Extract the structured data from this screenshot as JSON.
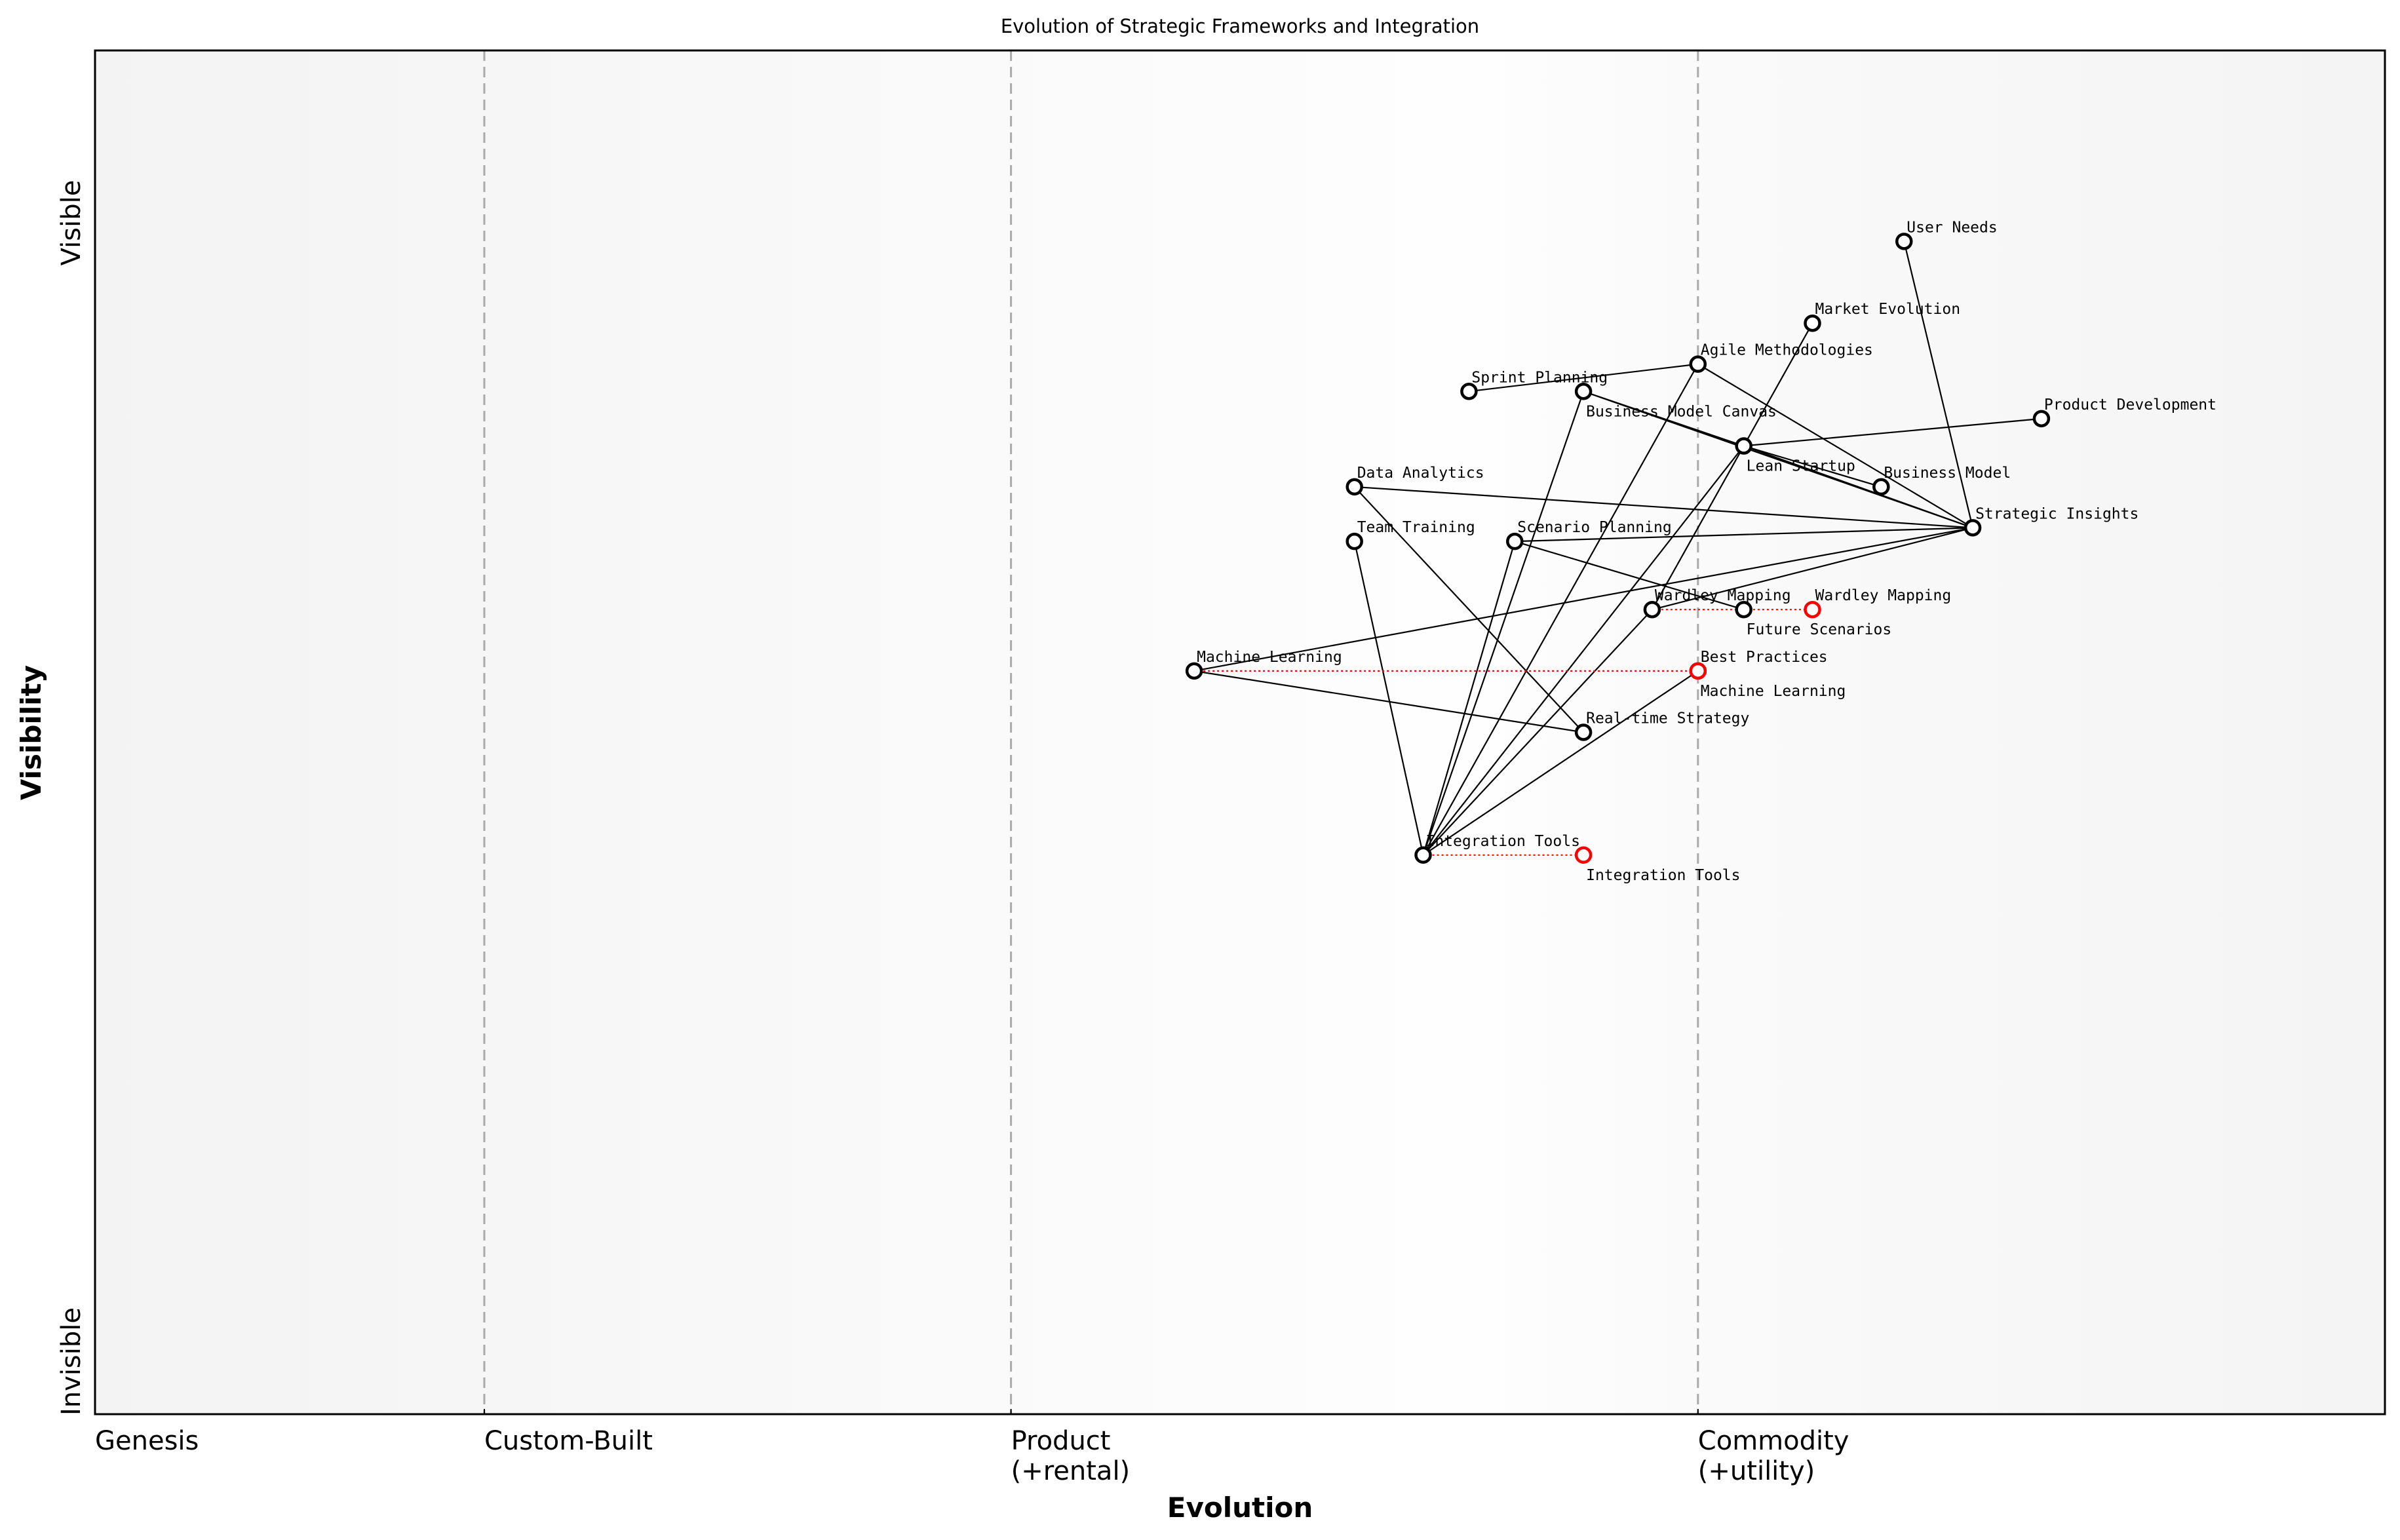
{
  "title": "Evolution of Strategic Frameworks and Integration",
  "xaxis": {
    "label": "Evolution",
    "stages": [
      {
        "value": 0.0,
        "lines": [
          "Genesis"
        ]
      },
      {
        "value": 0.17,
        "lines": [
          "Custom-Built"
        ]
      },
      {
        "value": 0.4,
        "lines": [
          "Product",
          "(+rental)"
        ]
      },
      {
        "value": 0.7,
        "lines": [
          "Commodity",
          "(+utility)"
        ]
      }
    ]
  },
  "yaxis": {
    "label": "Visibility",
    "top_label": "Visible",
    "bottom_label": "Invisible"
  },
  "colors": {
    "node": "#000000",
    "evolved": "#ff0000",
    "divider": "#aaaaaa"
  },
  "components": [
    {
      "name": "User Needs",
      "evolution": 0.79,
      "visibility": 0.86
    },
    {
      "name": "Market Evolution",
      "evolution": 0.75,
      "visibility": 0.8
    },
    {
      "name": "Agile Methodologies",
      "evolution": 0.7,
      "visibility": 0.77
    },
    {
      "name": "Sprint Planning",
      "evolution": 0.6,
      "visibility": 0.75
    },
    {
      "name": "Business Model Canvas",
      "evolution": 0.65,
      "visibility": 0.75
    },
    {
      "name": "Product Development",
      "evolution": 0.85,
      "visibility": 0.73
    },
    {
      "name": "Lean Startup",
      "evolution": 0.72,
      "visibility": 0.71
    },
    {
      "name": "Business Model",
      "evolution": 0.78,
      "visibility": 0.68
    },
    {
      "name": "Data Analytics",
      "evolution": 0.55,
      "visibility": 0.68
    },
    {
      "name": "Strategic Insights",
      "evolution": 0.82,
      "visibility": 0.65
    },
    {
      "name": "Team Training",
      "evolution": 0.55,
      "visibility": 0.64
    },
    {
      "name": "Scenario Planning",
      "evolution": 0.62,
      "visibility": 0.64
    },
    {
      "name": "Wardley Mapping",
      "evolution": 0.68,
      "visibility": 0.59
    },
    {
      "name": "Future Scenarios",
      "evolution": 0.72,
      "visibility": 0.59
    },
    {
      "name": "Machine Learning",
      "evolution": 0.48,
      "visibility": 0.545
    },
    {
      "name": "Best Practices",
      "evolution": 0.7,
      "visibility": 0.545
    },
    {
      "name": "Real-time Strategy",
      "evolution": 0.65,
      "visibility": 0.5
    },
    {
      "name": "Integration Tools",
      "evolution": 0.58,
      "visibility": 0.41
    }
  ],
  "evolutions": [
    {
      "name": "Wardley Mapping",
      "to": 0.75
    },
    {
      "name": "Machine Learning",
      "to": 0.7
    },
    {
      "name": "Integration Tools",
      "to": 0.65
    }
  ],
  "links": [
    [
      "User Needs",
      "Strategic Insights"
    ],
    [
      "Market Evolution",
      "Wardley Mapping"
    ],
    [
      "Agile Methodologies",
      "Sprint Planning"
    ],
    [
      "Agile Methodologies",
      "Strategic Insights"
    ],
    [
      "Agile Methodologies",
      "Integration Tools"
    ],
    [
      "Business Model Canvas",
      "Lean Startup"
    ],
    [
      "Business Model Canvas",
      "Strategic Insights"
    ],
    [
      "Business Model Canvas",
      "Integration Tools"
    ],
    [
      "Lean Startup",
      "Product Development"
    ],
    [
      "Lean Startup",
      "Business Model"
    ],
    [
      "Lean Startup",
      "Strategic Insights"
    ],
    [
      "Lean Startup",
      "Integration Tools"
    ],
    [
      "Data Analytics",
      "Strategic Insights"
    ],
    [
      "Data Analytics",
      "Real-time Strategy"
    ],
    [
      "Team Training",
      "Integration Tools"
    ],
    [
      "Scenario Planning",
      "Strategic Insights"
    ],
    [
      "Scenario Planning",
      "Future Scenarios"
    ],
    [
      "Scenario Planning",
      "Integration Tools"
    ],
    [
      "Machine Learning",
      "Strategic Insights"
    ],
    [
      "Machine Learning",
      "Real-time Strategy"
    ],
    [
      "Wardley Mapping",
      "Strategic Insights"
    ],
    [
      "Wardley Mapping",
      "Integration Tools"
    ],
    [
      "Integration Tools",
      "Best Practices"
    ]
  ]
}
